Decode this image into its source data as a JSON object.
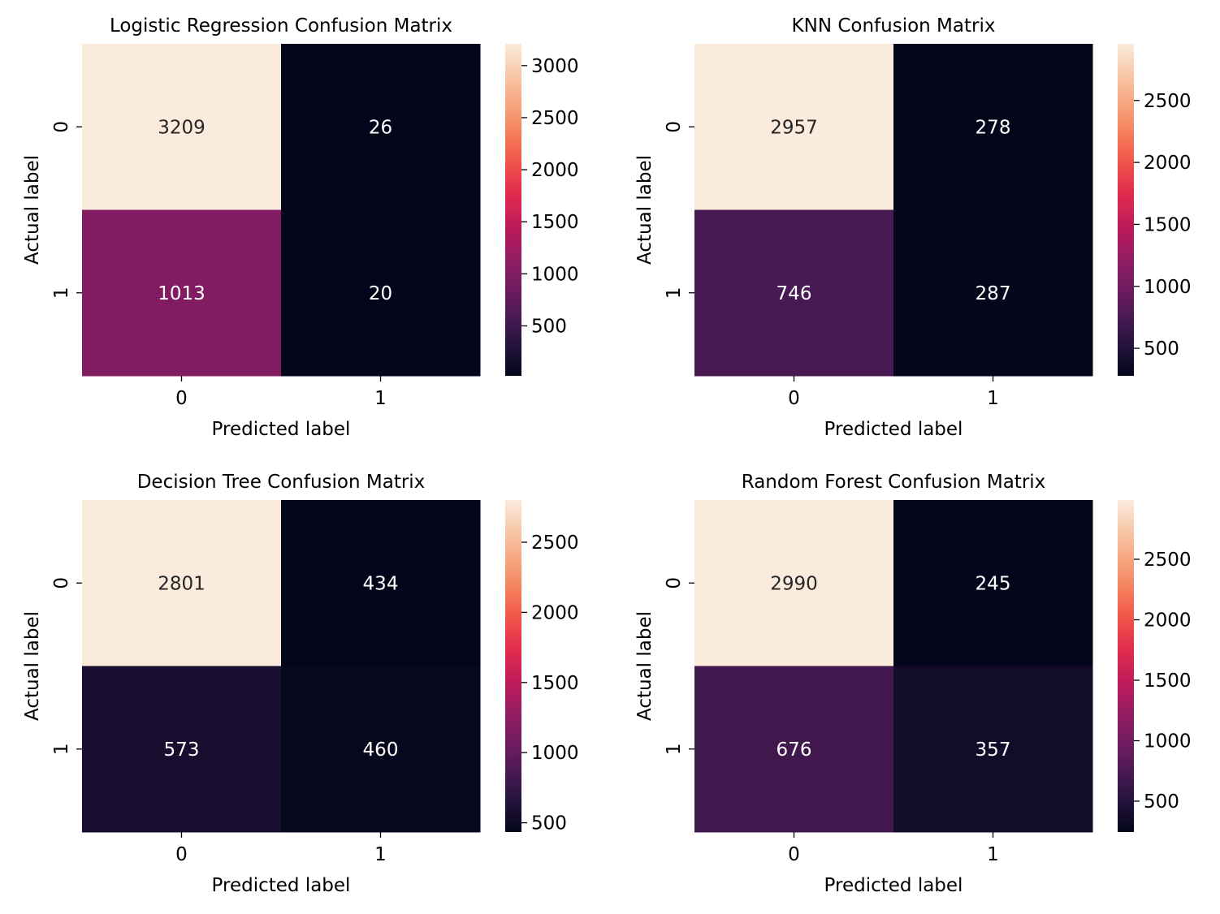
{
  "figure": {
    "colormap": "rocket",
    "colormap_stops": [
      "#03051a",
      "#2b1643",
      "#5d1b5e",
      "#8b1c63",
      "#bc1a5b",
      "#e22d4c",
      "#f35f4a",
      "#f6966d",
      "#f7c09f",
      "#faebdd"
    ],
    "text_color_on_dark": "#ffffff",
    "text_color_on_light": "#262626"
  },
  "chart_data": [
    {
      "type": "heatmap",
      "title": "Logistic Regression Confusion Matrix",
      "xlabel": "Predicted label",
      "ylabel": "Actual label",
      "x_categories": [
        "0",
        "1"
      ],
      "y_categories": [
        "0",
        "1"
      ],
      "values": [
        [
          3209,
          26
        ],
        [
          1013,
          20
        ]
      ],
      "colorbar": {
        "min": 20,
        "max": 3209,
        "ticks": [
          500,
          1000,
          1500,
          2000,
          2500,
          3000
        ]
      }
    },
    {
      "type": "heatmap",
      "title": "KNN Confusion Matrix",
      "xlabel": "Predicted label",
      "ylabel": "Actual label",
      "x_categories": [
        "0",
        "1"
      ],
      "y_categories": [
        "0",
        "1"
      ],
      "values": [
        [
          2957,
          278
        ],
        [
          746,
          287
        ]
      ],
      "colorbar": {
        "min": 278,
        "max": 2957,
        "ticks": [
          500,
          1000,
          1500,
          2000,
          2500
        ]
      }
    },
    {
      "type": "heatmap",
      "title": "Decision Tree Confusion Matrix",
      "xlabel": "Predicted label",
      "ylabel": "Actual label",
      "x_categories": [
        "0",
        "1"
      ],
      "y_categories": [
        "0",
        "1"
      ],
      "values": [
        [
          2801,
          434
        ],
        [
          573,
          460
        ]
      ],
      "colorbar": {
        "min": 434,
        "max": 2801,
        "ticks": [
          500,
          1000,
          1500,
          2000,
          2500
        ]
      }
    },
    {
      "type": "heatmap",
      "title": "Random Forest Confusion Matrix",
      "xlabel": "Predicted label",
      "ylabel": "Actual label",
      "x_categories": [
        "0",
        "1"
      ],
      "y_categories": [
        "0",
        "1"
      ],
      "values": [
        [
          2990,
          245
        ],
        [
          676,
          357
        ]
      ],
      "colorbar": {
        "min": 245,
        "max": 2990,
        "ticks": [
          500,
          1000,
          1500,
          2000,
          2500
        ]
      }
    }
  ]
}
